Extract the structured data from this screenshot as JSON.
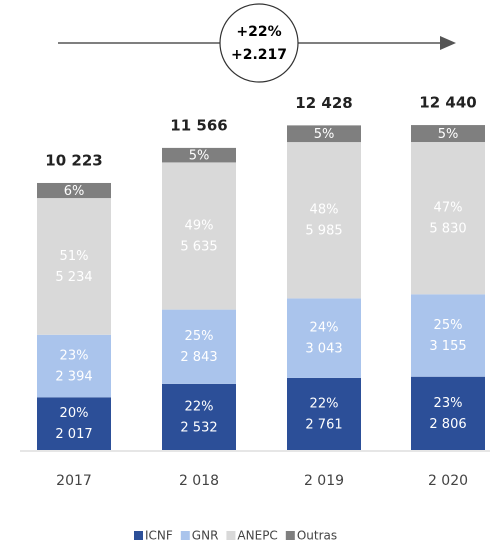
{
  "chart_data": {
    "type": "stacked_bar",
    "categories": [
      "2017",
      "2 018",
      "2 019",
      "2 020"
    ],
    "series": [
      {
        "name": "ICNF",
        "color": "#2c4f98",
        "values": [
          2017,
          2532,
          2761,
          2806
        ],
        "value_labels": [
          "2 017",
          "2 532",
          "2 761",
          "2 806"
        ],
        "share_labels": [
          "20%",
          "22%",
          "22%",
          "23%"
        ]
      },
      {
        "name": "GNR",
        "color": "#aac4ec",
        "values": [
          2394,
          2843,
          3043,
          3155
        ],
        "value_labels": [
          "2 394",
          "2 843",
          "3 043",
          "3 155"
        ],
        "share_labels": [
          "23%",
          "25%",
          "24%",
          "25%"
        ]
      },
      {
        "name": "ANEPC",
        "color": "#d9d9d9",
        "values": [
          5234,
          5635,
          5985,
          5830
        ],
        "value_labels": [
          "5 234",
          "5 635",
          "5 985",
          "5 830"
        ],
        "share_labels": [
          "51%",
          "49%",
          "48%",
          "47%"
        ]
      },
      {
        "name": "Outras",
        "color": "#7f7f7f",
        "values": [
          578,
          556,
          639,
          649
        ],
        "share_labels": [
          "6%",
          "5%",
          "5%",
          "5%"
        ]
      }
    ],
    "totals": [
      10223,
      11566,
      12428,
      12440
    ],
    "total_labels": [
      "10 223",
      "11 566",
      "12 428",
      "12 440"
    ],
    "annotation": {
      "lines": [
        "+22%",
        "+2.217"
      ]
    }
  }
}
